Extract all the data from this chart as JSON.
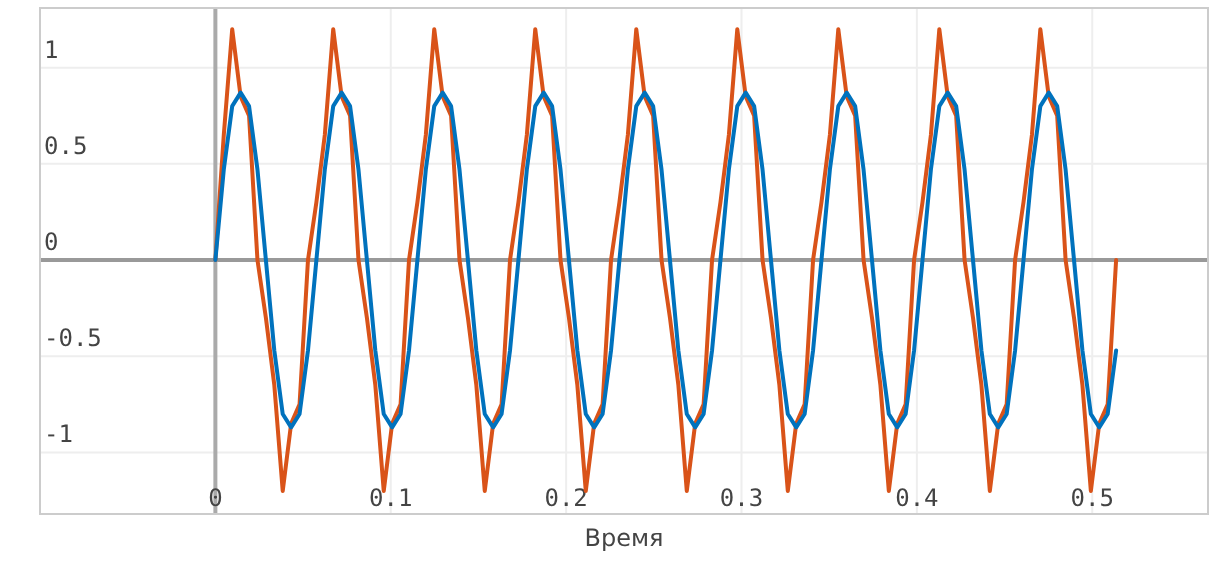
{
  "chart_data": {
    "type": "line",
    "xlabel": "Время",
    "x": [
      0,
      0.0048,
      0.0096,
      0.0144,
      0.0192,
      0.024,
      0.0288,
      0.0336,
      0.0384,
      0.0432,
      0.048,
      0.0528,
      0.0576,
      0.0624,
      0.0672,
      0.072,
      0.0768,
      0.0816,
      0.0864,
      0.0912,
      0.096,
      0.1008,
      0.1056,
      0.1104,
      0.1152,
      0.12,
      0.1248,
      0.1296,
      0.1344,
      0.1392,
      0.144,
      0.1488,
      0.1536,
      0.1584,
      0.1632,
      0.168,
      0.1728,
      0.1776,
      0.1824,
      0.1872,
      0.192,
      0.1968,
      0.2016,
      0.2064,
      0.2112,
      0.216,
      0.2208,
      0.2256,
      0.2304,
      0.2352,
      0.24,
      0.2448,
      0.2496,
      0.2544,
      0.2592,
      0.264,
      0.2688,
      0.2736,
      0.2784,
      0.2832,
      0.288,
      0.2928,
      0.2976,
      0.3024,
      0.3072,
      0.312,
      0.3168,
      0.3216,
      0.3264,
      0.3312,
      0.336,
      0.3408,
      0.3456,
      0.3504,
      0.3552,
      0.36,
      0.3648,
      0.3696,
      0.3744,
      0.3792,
      0.384,
      0.3888,
      0.3936,
      0.3984,
      0.4032,
      0.408,
      0.4128,
      0.4176,
      0.4224,
      0.4272,
      0.432,
      0.4368,
      0.4416,
      0.4464,
      0.4512,
      0.456,
      0.4608,
      0.4656,
      0.4704,
      0.4752,
      0.48,
      0.4848,
      0.4896,
      0.4944,
      0.4992,
      0.504,
      0.5088,
      0.5136
    ],
    "series": [
      {
        "color": "#d95319",
        "values": [
          0,
          0.65,
          1.2,
          0.85,
          0.75,
          0,
          -0.3,
          -0.65,
          -1.2,
          -0.85,
          -0.75,
          0,
          0.3,
          0.65,
          1.2,
          0.85,
          0.75,
          0,
          -0.3,
          -0.65,
          -1.2,
          -0.85,
          -0.75,
          0,
          0.3,
          0.65,
          1.2,
          0.85,
          0.75,
          0,
          -0.3,
          -0.65,
          -1.2,
          -0.85,
          -0.75,
          0,
          0.3,
          0.65,
          1.2,
          0.85,
          0.75,
          0,
          -0.3,
          -0.65,
          -1.2,
          -0.85,
          -0.75,
          0,
          0.3,
          0.65,
          1.2,
          0.85,
          0.75,
          0,
          -0.3,
          -0.65,
          -1.2,
          -0.85,
          -0.75,
          0,
          0.3,
          0.65,
          1.2,
          0.85,
          0.75,
          0,
          -0.3,
          -0.65,
          -1.2,
          -0.85,
          -0.75,
          0,
          0.3,
          0.65,
          1.2,
          0.85,
          0.75,
          0,
          -0.3,
          -0.65,
          -1.2,
          -0.85,
          -0.75,
          0,
          0.3,
          0.65,
          1.2,
          0.85,
          0.75,
          0,
          -0.3,
          -0.65,
          -1.2,
          -0.85,
          -0.75,
          0,
          0.3,
          0.65,
          1.2,
          0.85,
          0.75,
          0,
          -0.3,
          -0.65,
          -1.2,
          -0.85,
          -0.75,
          0
        ]
      },
      {
        "color": "#0072bd",
        "values": [
          0,
          0.47,
          0.8,
          0.87,
          0.8,
          0.47,
          0,
          -0.47,
          -0.8,
          -0.87,
          -0.8,
          -0.47,
          0,
          0.47,
          0.8,
          0.87,
          0.8,
          0.47,
          0,
          -0.47,
          -0.8,
          -0.87,
          -0.8,
          -0.47,
          0,
          0.47,
          0.8,
          0.87,
          0.8,
          0.47,
          0,
          -0.47,
          -0.8,
          -0.87,
          -0.8,
          -0.47,
          0,
          0.47,
          0.8,
          0.87,
          0.8,
          0.47,
          0,
          -0.47,
          -0.8,
          -0.87,
          -0.8,
          -0.47,
          0,
          0.47,
          0.8,
          0.87,
          0.8,
          0.47,
          0,
          -0.47,
          -0.8,
          -0.87,
          -0.8,
          -0.47,
          0,
          0.47,
          0.8,
          0.87,
          0.8,
          0.47,
          0,
          -0.47,
          -0.8,
          -0.87,
          -0.8,
          -0.47,
          0,
          0.47,
          0.8,
          0.87,
          0.8,
          0.47,
          0,
          -0.47,
          -0.8,
          -0.87,
          -0.8,
          -0.47,
          0,
          0.47,
          0.8,
          0.87,
          0.8,
          0.47,
          0,
          -0.47,
          -0.8,
          -0.87,
          -0.8,
          -0.47,
          0,
          0.47,
          0.8,
          0.87,
          0.8,
          0.47,
          0,
          -0.47,
          -0.8,
          -0.87,
          -0.8,
          -0.47
        ]
      }
    ],
    "xlim": [
      -0.1,
      0.566
    ],
    "ylim": [
      -1.32,
      1.31
    ],
    "xticks": [
      0,
      0.1,
      0.2,
      0.3,
      0.4,
      0.5
    ],
    "yticks": [
      -1,
      -0.5,
      0,
      0.5,
      1
    ],
    "grid": true,
    "line_style": "solid",
    "ref_lines": [
      {
        "axis": "x",
        "value": 0,
        "color": "#aaaaaa"
      }
    ]
  }
}
